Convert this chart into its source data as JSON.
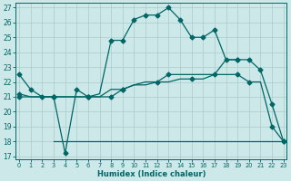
{
  "xlabel": "Humidex (Indice chaleur)",
  "background_color": "#cde8e8",
  "grid_color": "#aacccc",
  "line_color": "#006666",
  "xlim": [
    0,
    23
  ],
  "ylim": [
    17,
    27
  ],
  "xticks": [
    0,
    1,
    2,
    3,
    4,
    5,
    6,
    7,
    8,
    9,
    10,
    11,
    12,
    13,
    14,
    15,
    16,
    17,
    18,
    19,
    20,
    21,
    22,
    23
  ],
  "yticks": [
    17,
    18,
    19,
    20,
    21,
    22,
    23,
    24,
    25,
    26,
    27
  ],
  "line1_x": [
    0,
    1,
    2,
    3,
    4,
    5,
    6,
    7,
    8,
    9,
    10,
    11,
    12,
    13,
    14,
    15,
    16,
    17,
    18,
    19
  ],
  "line1_y": [
    22.5,
    21.5,
    21.0,
    21.0,
    17.2,
    21.5,
    21.0,
    21.2,
    24.8,
    24.8,
    26.2,
    26.5,
    26.5,
    27.0,
    26.2,
    25.0,
    25.0,
    25.5,
    23.5,
    23.5
  ],
  "line2_x": [
    0,
    1,
    2,
    3,
    4,
    5,
    6,
    7,
    8,
    9,
    10,
    11,
    12,
    13,
    14,
    15,
    16,
    17,
    18,
    19,
    20,
    21,
    22,
    23
  ],
  "line2_y": [
    21.0,
    21.0,
    21.0,
    21.0,
    21.0,
    21.0,
    21.0,
    21.0,
    21.0,
    21.5,
    21.8,
    22.0,
    22.0,
    22.5,
    22.5,
    22.5,
    22.5,
    22.5,
    23.5,
    23.5,
    23.5,
    22.8,
    20.5,
    18.0
  ],
  "line3_x": [
    0,
    1,
    2,
    3,
    4,
    5,
    6,
    7,
    8,
    9,
    10,
    11,
    12,
    13,
    14,
    15,
    16,
    17,
    18,
    19,
    20,
    21,
    22,
    23
  ],
  "line3_y": [
    21.2,
    21.0,
    21.0,
    21.0,
    21.0,
    21.0,
    21.0,
    21.0,
    21.5,
    21.5,
    21.8,
    21.8,
    22.0,
    22.0,
    22.2,
    22.2,
    22.2,
    22.5,
    22.5,
    22.5,
    22.0,
    22.0,
    19.0,
    18.0
  ],
  "line4_x": [
    3,
    4,
    5,
    6,
    7,
    8,
    9,
    10,
    11,
    12,
    13,
    14,
    15,
    16,
    17,
    18,
    19,
    20,
    21,
    22,
    23
  ],
  "line4_y": [
    18.0,
    18.0,
    18.0,
    18.0,
    18.0,
    18.0,
    18.0,
    18.0,
    18.0,
    18.0,
    18.0,
    18.0,
    18.0,
    18.0,
    18.0,
    18.0,
    18.0,
    18.0,
    18.0,
    18.0,
    18.0
  ],
  "marker1_x": [
    0,
    1,
    2,
    3,
    4,
    5,
    6,
    8,
    9,
    10,
    11,
    12,
    13,
    14,
    15,
    16,
    17,
    18,
    19
  ],
  "marker1_y": [
    22.5,
    21.5,
    21.0,
    21.0,
    17.2,
    21.5,
    21.0,
    24.8,
    24.8,
    26.2,
    26.5,
    26.5,
    27.0,
    26.2,
    25.0,
    25.0,
    25.5,
    23.5,
    23.5
  ],
  "marker2_x": [
    0,
    3,
    6,
    8,
    9,
    13,
    17,
    19,
    20,
    21,
    22,
    23
  ],
  "marker2_y": [
    21.0,
    21.0,
    21.0,
    21.0,
    21.5,
    22.5,
    22.5,
    23.5,
    23.5,
    22.8,
    20.5,
    18.0
  ],
  "marker3_x": [
    0,
    3,
    6,
    9,
    12,
    15,
    19,
    20,
    22,
    23
  ],
  "marker3_y": [
    21.2,
    21.0,
    21.0,
    21.5,
    22.0,
    22.2,
    22.5,
    22.0,
    19.0,
    18.0
  ]
}
